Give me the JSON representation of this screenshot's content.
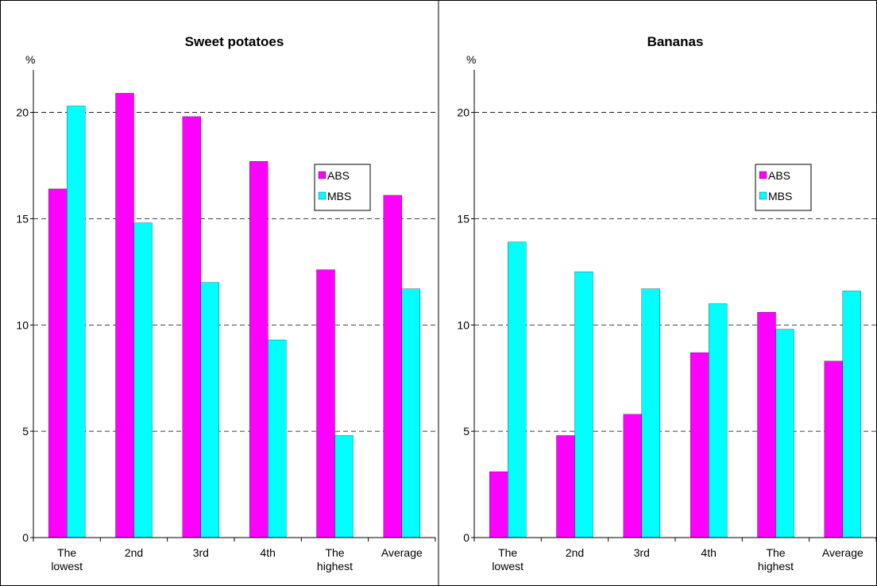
{
  "chart_data": [
    {
      "type": "bar",
      "title": "Sweet potatoes",
      "y_label": "%",
      "categories": [
        "The lowest",
        "2nd",
        "3rd",
        "4th",
        "The highest",
        "Average"
      ],
      "series": [
        {
          "name": "ABS",
          "color": "#ff00ff",
          "values": [
            16.4,
            20.9,
            19.8,
            17.7,
            12.6,
            16.1
          ]
        },
        {
          "name": "MBS",
          "color": "#00ffff",
          "values": [
            20.3,
            14.8,
            12.0,
            9.3,
            4.8,
            11.7
          ]
        }
      ],
      "ylim": [
        0,
        22
      ],
      "yticks": [
        0,
        5,
        10,
        15,
        20
      ],
      "grid": true,
      "legend": "right"
    },
    {
      "type": "bar",
      "title": "Bananas",
      "y_label": "%",
      "categories": [
        "The lowest",
        "2nd",
        "3rd",
        "4th",
        "The highest",
        "Average"
      ],
      "series": [
        {
          "name": "ABS",
          "color": "#ff00ff",
          "values": [
            3.1,
            4.8,
            5.8,
            8.7,
            10.6,
            8.3
          ]
        },
        {
          "name": "MBS",
          "color": "#00ffff",
          "values": [
            13.9,
            12.5,
            11.7,
            11.0,
            9.8,
            11.6
          ]
        }
      ],
      "ylim": [
        0,
        22
      ],
      "yticks": [
        0,
        5,
        10,
        15,
        20
      ],
      "grid": true,
      "legend": "right"
    }
  ]
}
